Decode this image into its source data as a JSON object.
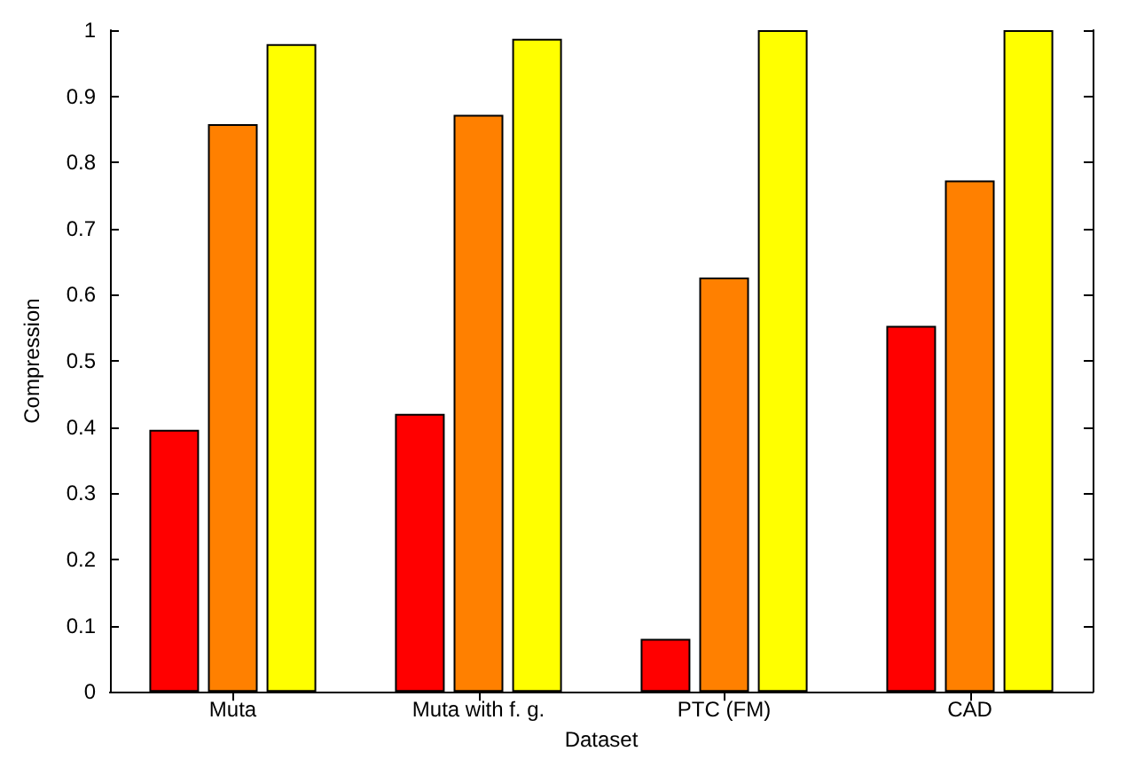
{
  "chart_data": {
    "type": "bar",
    "xlabel": "Dataset",
    "ylabel": "Compression",
    "categories": [
      "Muta",
      "Muta with f. g.",
      "PTC (FM)",
      "CAD"
    ],
    "series": [
      {
        "color": "#ff0000",
        "values": [
          0.396,
          0.42,
          0.08,
          0.553
        ]
      },
      {
        "color": "#ff8000",
        "values": [
          0.858,
          0.872,
          0.626,
          0.773
        ]
      },
      {
        "color": "#ffff00",
        "values": [
          0.979,
          0.987,
          1.0,
          1.0
        ]
      }
    ],
    "ylim": [
      0,
      1
    ],
    "yticks": [
      0,
      0.1,
      0.2,
      0.3,
      0.4,
      0.5,
      0.6,
      0.7,
      0.8,
      0.9,
      1
    ],
    "grid": false
  }
}
